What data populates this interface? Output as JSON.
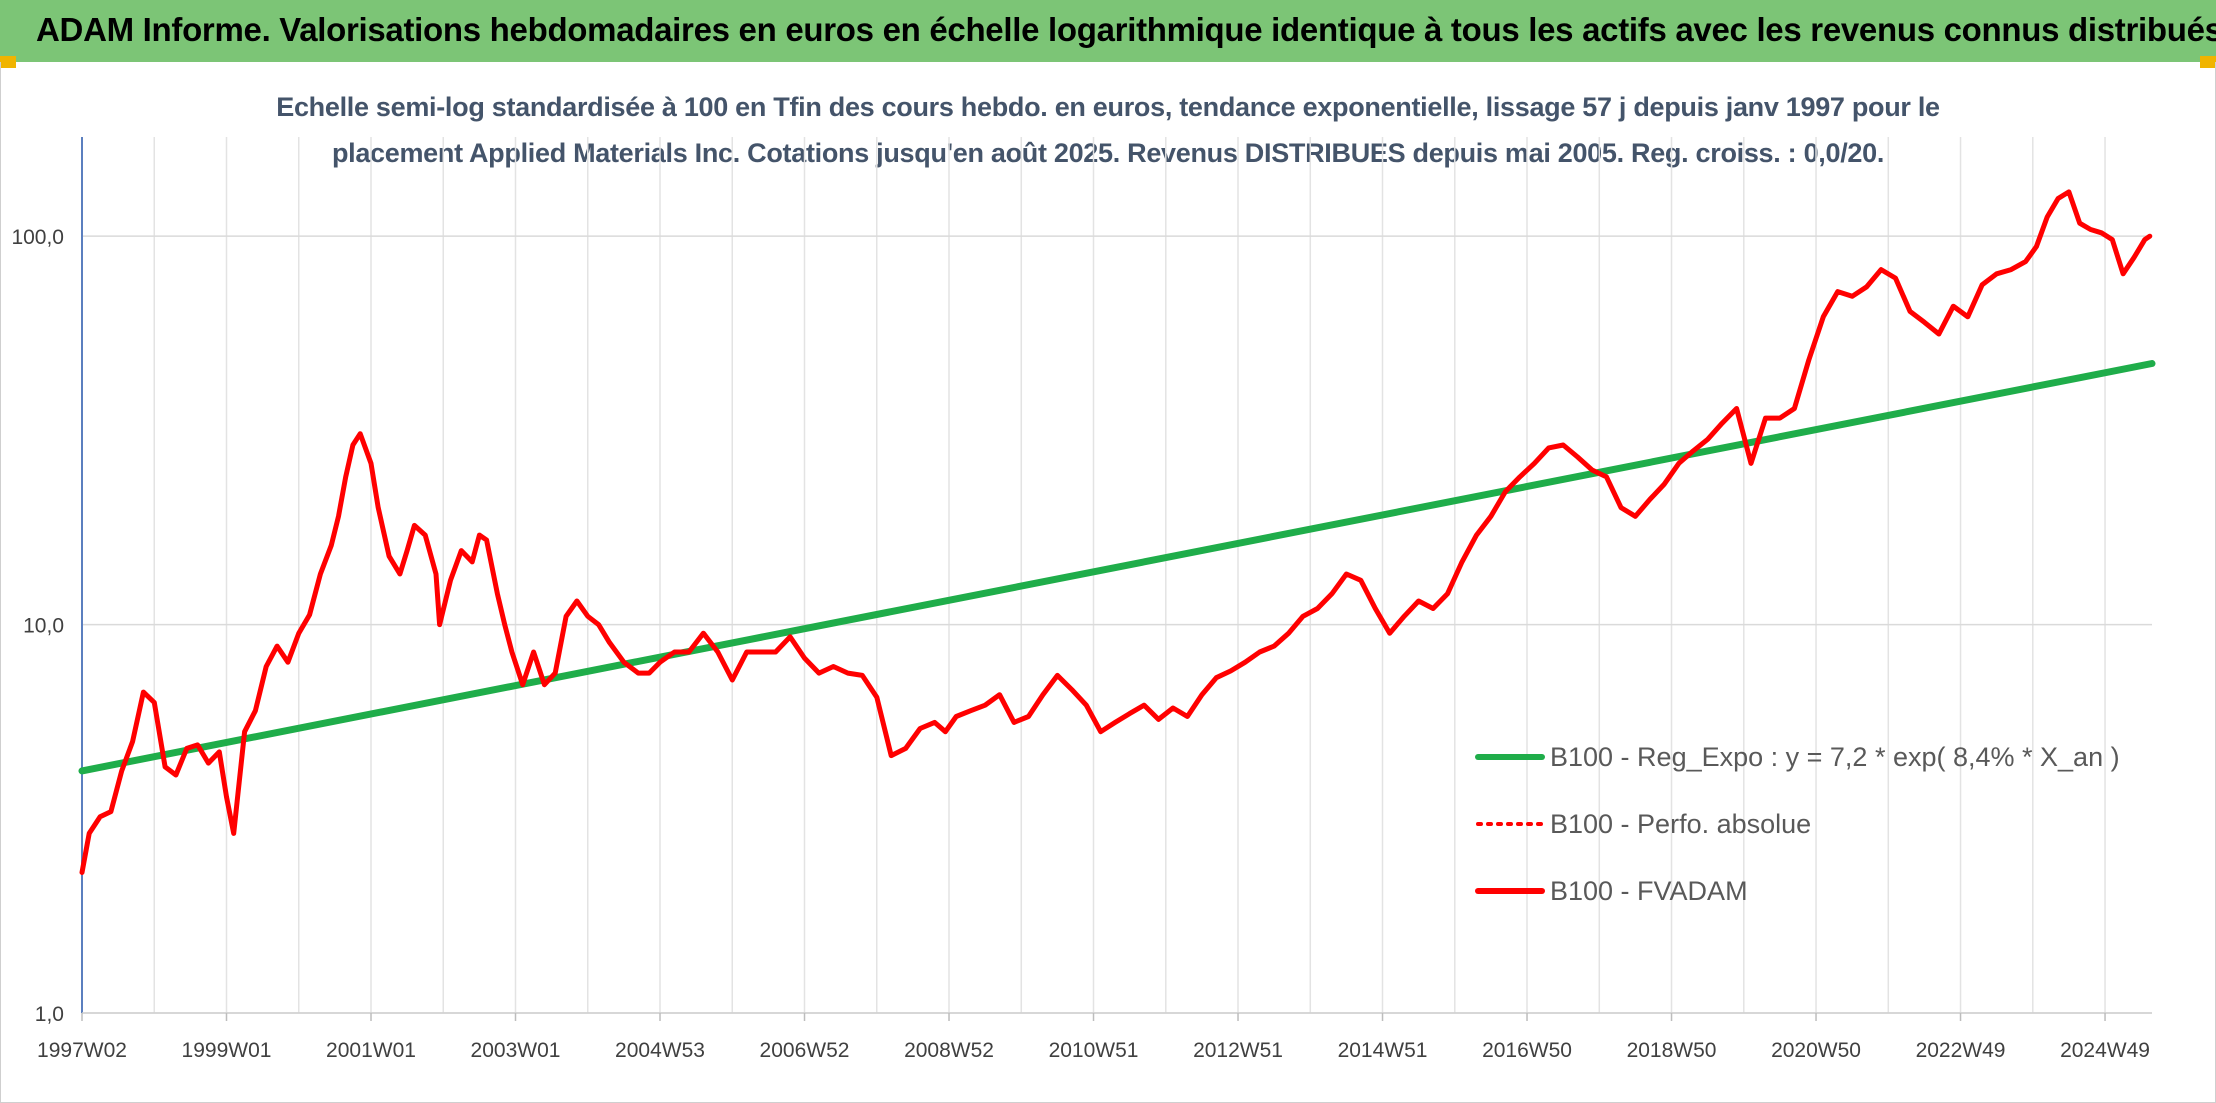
{
  "header": {
    "title": "ADAM Informe. Valorisations hebdomadaires en euros en échelle logarithmique identique à tous les actifs avec les revenus connus distribués",
    "band_color": "#7cc576",
    "corner_color": "#f0b400"
  },
  "chart_data": {
    "type": "line",
    "subtitle_line1": "Echelle semi-log standardisée à 100 en Tfin des cours hebdo. en euros, tendance exponentielle, lissage 57 j depuis janv 1997 pour le",
    "subtitle_line2": "placement Applied Materials Inc. Cotations jusqu'en août 2025. Revenus DISTRIBUES depuis mai 2005. Reg. croiss. : 0,0/20.",
    "yscale": "log",
    "ylim": [
      1,
      180
    ],
    "xlim": [
      1997.0,
      2025.65
    ],
    "y_ticks": [
      {
        "value": 1,
        "label": "1,0"
      },
      {
        "value": 10,
        "label": "10,0"
      },
      {
        "value": 100,
        "label": "100,0"
      }
    ],
    "x_ticks": [
      {
        "value": 1997.0,
        "label": "1997W02"
      },
      {
        "value": 1999.0,
        "label": "1999W01"
      },
      {
        "value": 2001.0,
        "label": "2001W01"
      },
      {
        "value": 2003.0,
        "label": "2003W01"
      },
      {
        "value": 2005.0,
        "label": "2004W53"
      },
      {
        "value": 2007.0,
        "label": "2006W52"
      },
      {
        "value": 2009.0,
        "label": "2008W52"
      },
      {
        "value": 2011.0,
        "label": "2010W51"
      },
      {
        "value": 2013.0,
        "label": "2012W51"
      },
      {
        "value": 2015.0,
        "label": "2014W51"
      },
      {
        "value": 2017.0,
        "label": "2016W50"
      },
      {
        "value": 2019.0,
        "label": "2018W50"
      },
      {
        "value": 2021.0,
        "label": "2020W50"
      },
      {
        "value": 2023.0,
        "label": "2022W49"
      },
      {
        "value": 2025.0,
        "label": "2024W49"
      }
    ],
    "grid": {
      "vertical": true,
      "horizontal": true
    },
    "legend_position": "right",
    "series": [
      {
        "name": "B100 - Reg_Expo : y = 7,2 * exp( 8,4% *  X_an )",
        "color": "#1fad4a",
        "style": "solid",
        "x": [
          1997.0,
          2025.65
        ],
        "y": [
          4.2,
          47
        ]
      },
      {
        "name": "B100 - Perfo. absolue",
        "color": "#ff0000",
        "style": "dotted",
        "x": [],
        "y": []
      },
      {
        "name": "B100 - FVADAM",
        "color": "#ff0000",
        "style": "solid",
        "x": [
          1997.0,
          1997.1,
          1997.25,
          1997.4,
          1997.55,
          1997.7,
          1997.85,
          1998.0,
          1998.15,
          1998.3,
          1998.45,
          1998.6,
          1998.75,
          1998.9,
          1999.0,
          1999.1,
          1999.25,
          1999.4,
          1999.55,
          1999.7,
          1999.85,
          2000.0,
          2000.15,
          2000.3,
          2000.45,
          2000.55,
          2000.65,
          2000.75,
          2000.85,
          2001.0,
          2001.1,
          2001.25,
          2001.4,
          2001.5,
          2001.6,
          2001.75,
          2001.9,
          2001.95,
          2002.1,
          2002.25,
          2002.4,
          2002.5,
          2002.6,
          2002.75,
          2002.85,
          2002.95,
          2003.1,
          2003.25,
          2003.4,
          2003.55,
          2003.7,
          2003.85,
          2004.0,
          2004.15,
          2004.3,
          2004.5,
          2004.7,
          2004.85,
          2005.0,
          2005.2,
          2005.4,
          2005.6,
          2005.8,
          2006.0,
          2006.2,
          2006.4,
          2006.6,
          2006.8,
          2007.0,
          2007.2,
          2007.4,
          2007.6,
          2007.8,
          2008.0,
          2008.2,
          2008.4,
          2008.6,
          2008.8,
          2008.95,
          2009.1,
          2009.3,
          2009.5,
          2009.7,
          2009.9,
          2010.1,
          2010.3,
          2010.5,
          2010.7,
          2010.9,
          2011.1,
          2011.3,
          2011.5,
          2011.7,
          2011.9,
          2012.1,
          2012.3,
          2012.5,
          2012.7,
          2012.9,
          2013.1,
          2013.3,
          2013.5,
          2013.7,
          2013.9,
          2014.1,
          2014.3,
          2014.5,
          2014.7,
          2014.9,
          2015.1,
          2015.3,
          2015.5,
          2015.7,
          2015.9,
          2016.1,
          2016.3,
          2016.5,
          2016.7,
          2016.9,
          2017.1,
          2017.3,
          2017.5,
          2017.7,
          2017.9,
          2018.1,
          2018.3,
          2018.5,
          2018.7,
          2018.9,
          2019.1,
          2019.3,
          2019.5,
          2019.7,
          2019.9,
          2020.1,
          2020.3,
          2020.5,
          2020.7,
          2020.9,
          2021.1,
          2021.3,
          2021.5,
          2021.7,
          2021.9,
          2022.1,
          2022.3,
          2022.5,
          2022.7,
          2022.9,
          2023.1,
          2023.3,
          2023.5,
          2023.7,
          2023.9,
          2024.05,
          2024.2,
          2024.35,
          2024.5,
          2024.65,
          2024.8,
          2024.95,
          2025.1,
          2025.25,
          2025.4,
          2025.55,
          2025.62
        ],
        "y": [
          2.3,
          2.9,
          3.2,
          3.3,
          4.2,
          5.0,
          6.7,
          6.3,
          4.3,
          4.1,
          4.8,
          4.9,
          4.4,
          4.7,
          3.6,
          2.9,
          5.3,
          6.0,
          7.8,
          8.8,
          8.0,
          9.5,
          10.6,
          13.5,
          16.0,
          19.0,
          24.0,
          29.0,
          31.0,
          26.0,
          20.0,
          15.0,
          13.5,
          15.5,
          18.0,
          17.0,
          13.5,
          10.0,
          13.0,
          15.5,
          14.5,
          17.0,
          16.5,
          12.0,
          10.0,
          8.5,
          7.0,
          8.5,
          7.0,
          7.5,
          10.5,
          11.5,
          10.5,
          10.0,
          9.0,
          8.0,
          7.5,
          7.5,
          8.0,
          8.5,
          8.5,
          9.5,
          8.5,
          7.2,
          8.5,
          8.5,
          8.5,
          9.3,
          8.2,
          7.5,
          7.8,
          7.5,
          7.4,
          6.5,
          4.6,
          4.8,
          5.4,
          5.6,
          5.3,
          5.8,
          6.0,
          6.2,
          6.6,
          5.6,
          5.8,
          6.6,
          7.4,
          6.8,
          6.2,
          5.3,
          5.6,
          5.9,
          6.2,
          5.7,
          6.1,
          5.8,
          6.6,
          7.3,
          7.6,
          8.0,
          8.5,
          8.8,
          9.5,
          10.5,
          11.0,
          12.0,
          13.5,
          13.0,
          11.0,
          9.5,
          10.5,
          11.5,
          11.0,
          12.0,
          14.5,
          17.0,
          19.0,
          22.0,
          24.0,
          26.0,
          28.5,
          29.0,
          27.0,
          25.0,
          24.0,
          20.0,
          19.0,
          21.0,
          23.0,
          26.0,
          28.0,
          30.0,
          33.0,
          36.0,
          26.0,
          34.0,
          34.0,
          36.0,
          48.0,
          62.0,
          72.0,
          70.0,
          74.0,
          82.0,
          78.0,
          64.0,
          60.0,
          56.0,
          66.0,
          62.0,
          75.0,
          80.0,
          82.0,
          86.0,
          94.0,
          112.0,
          125.0,
          130.0,
          108.0,
          104.0,
          102.0,
          98.0,
          80.0,
          88.0,
          98.0,
          100.0
        ]
      }
    ]
  }
}
